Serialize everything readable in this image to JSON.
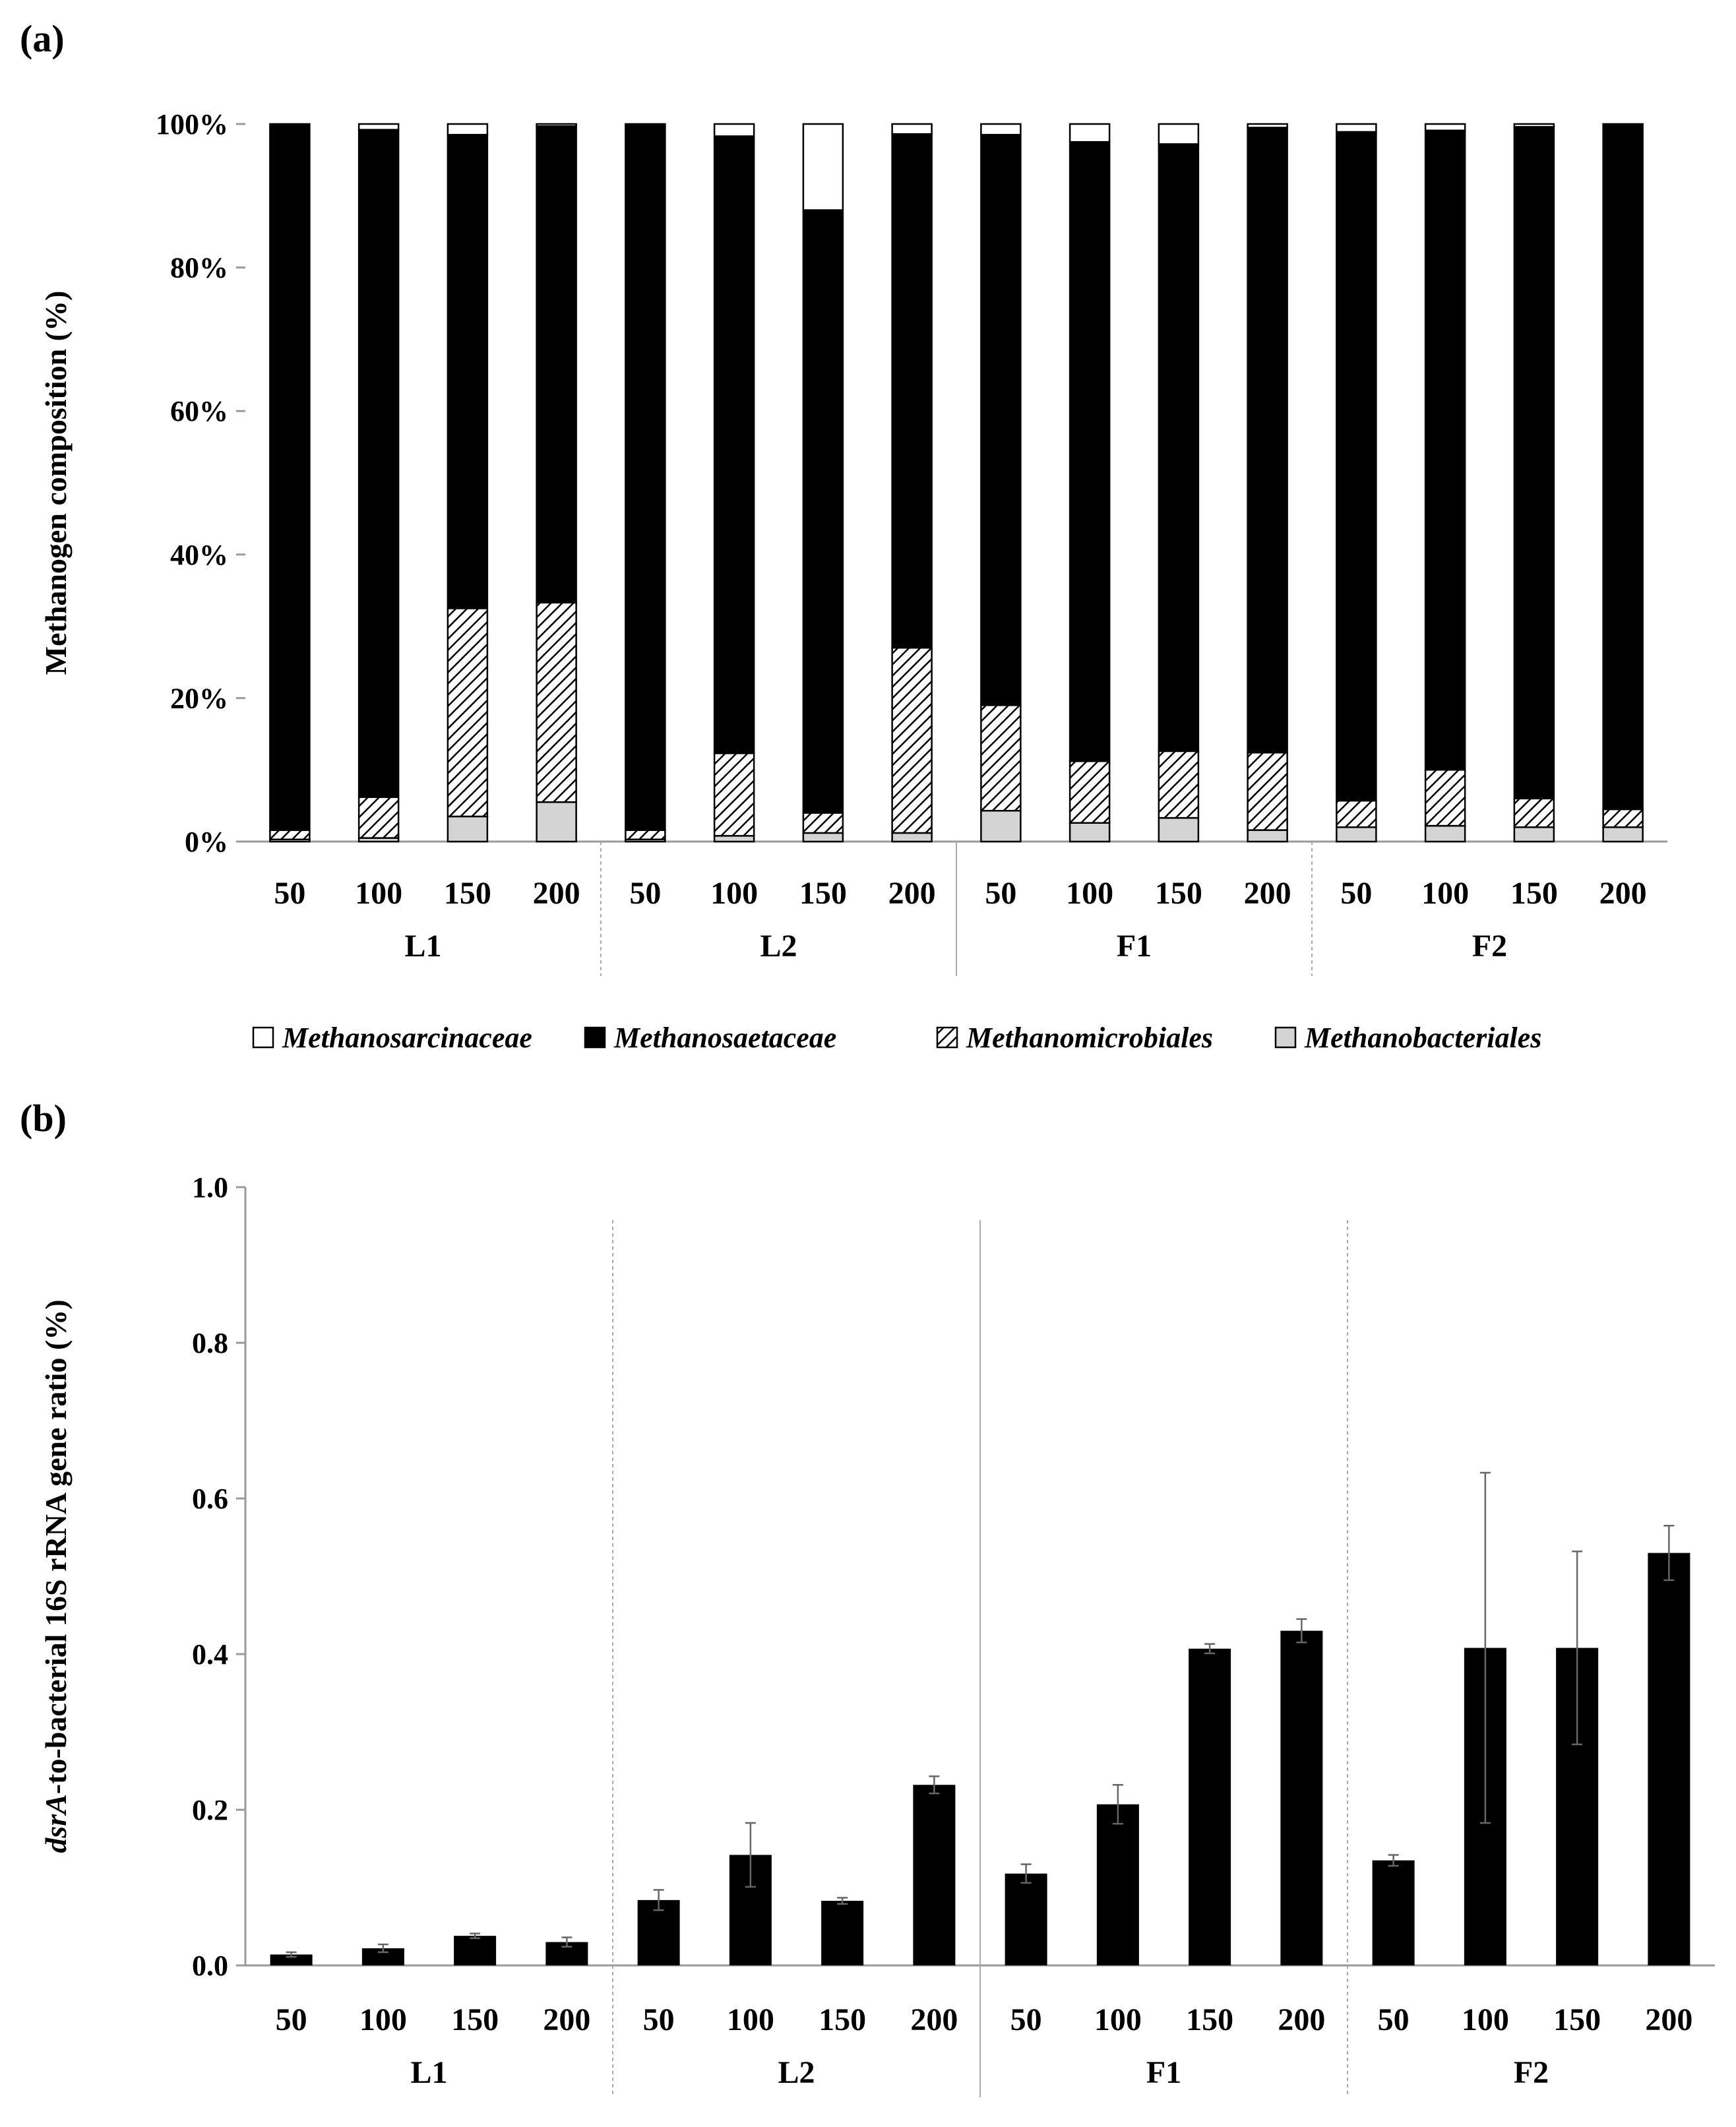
{
  "figure": {
    "panel_a_label": "(a)",
    "panel_b_label": "(b)"
  },
  "chart_data": [
    {
      "panel": "(a)",
      "type": "bar",
      "stacked": true,
      "percent": true,
      "ylabel": "Methanogen composition (%)",
      "xlabel": "",
      "ylim": [
        0,
        100
      ],
      "yticks": [
        "0%",
        "20%",
        "40%",
        "60%",
        "80%",
        "100%"
      ],
      "groups": [
        "L1",
        "L2",
        "F1",
        "F2"
      ],
      "categories": [
        "50",
        "100",
        "150",
        "200"
      ],
      "legend": [
        {
          "name": "Methanosarcinaceae",
          "fill": "white"
        },
        {
          "name": "Methanosaetaceae",
          "fill": "black"
        },
        {
          "name": "Methanomicrobiales",
          "fill": "hatch"
        },
        {
          "name": "Methanobacteriales",
          "fill": "lightgray"
        }
      ],
      "series": [
        {
          "name": "Methanobacteriales",
          "group_values": {
            "L1": [
              0.3,
              0.5,
              3.5,
              5.5
            ],
            "L2": [
              0.3,
              0.8,
              1.2,
              1.2
            ],
            "F1": [
              4.3,
              2.6,
              3.3,
              1.6
            ],
            "F2": [
              2.0,
              2.2,
              2.0,
              2.0
            ]
          }
        },
        {
          "name": "Methanomicrobiales",
          "group_values": {
            "L1": [
              1.3,
              5.7,
              29.0,
              27.8
            ],
            "L2": [
              1.3,
              11.5,
              2.8,
              25.8
            ],
            "F1": [
              14.7,
              8.6,
              9.3,
              10.8
            ],
            "F2": [
              3.7,
              7.8,
              4.0,
              2.5
            ]
          }
        },
        {
          "name": "Methanosaetaceae",
          "group_values": {
            "L1": [
              98.4,
              93.0,
              66.0,
              66.4
            ],
            "L2": [
              98.4,
              86.0,
              84.0,
              71.6
            ],
            "F1": [
              79.5,
              86.3,
              84.6,
              87.1
            ],
            "F2": [
              93.2,
              89.1,
              93.6,
              95.5
            ]
          }
        },
        {
          "name": "Methanosarcinaceae",
          "group_values": {
            "L1": [
              0.0,
              0.8,
              1.5,
              0.3
            ],
            "L2": [
              0.0,
              1.7,
              12.0,
              1.4
            ],
            "F1": [
              1.5,
              2.5,
              2.8,
              0.5
            ],
            "F2": [
              1.1,
              0.9,
              0.4,
              0.0
            ]
          }
        }
      ]
    },
    {
      "panel": "(b)",
      "type": "bar",
      "ylabel_italic": "dsrA",
      "ylabel_rest": "-to-bacterial 16S rRNA gene ratio (%)",
      "xlabel": "",
      "ylim": [
        0,
        1.0
      ],
      "yticks": [
        "0.0",
        "0.2",
        "0.4",
        "0.6",
        "0.8",
        "1.0"
      ],
      "groups": [
        "L1",
        "L2",
        "F1",
        "F2"
      ],
      "categories": [
        "50",
        "100",
        "150",
        "200"
      ],
      "group_values": {
        "L1": [
          0.014,
          0.022,
          0.038,
          0.03
        ],
        "L2": [
          0.084,
          0.142,
          0.083,
          0.232
        ],
        "F1": [
          0.118,
          0.207,
          0.407,
          0.43
        ],
        "F2": [
          0.135,
          0.408,
          0.408,
          0.53
        ]
      },
      "group_errors": {
        "L1": [
          0.003,
          0.005,
          0.003,
          0.006
        ],
        "L2": [
          0.013,
          0.041,
          0.004,
          0.011
        ],
        "F1": [
          0.012,
          0.025,
          0.006,
          0.015
        ],
        "F2": [
          0.007,
          0.225,
          0.124,
          0.035
        ]
      }
    }
  ]
}
